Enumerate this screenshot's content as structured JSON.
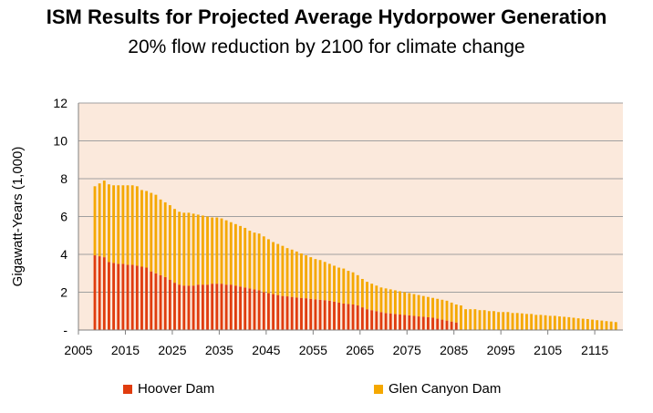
{
  "chart_data": {
    "type": "bar",
    "stacked": true,
    "title": "ISM Results for Projected Average Hydorpower Generation",
    "subtitle": "20% flow reduction by 2100 for climate change",
    "xlabel": "",
    "ylabel": "Gigawatt-Years (1,000)",
    "ylim": [
      0,
      12
    ],
    "yticks": [
      0,
      2,
      4,
      6,
      8,
      10,
      12
    ],
    "ytick_labels": [
      "-",
      "2",
      "4",
      "6",
      "8",
      "10",
      "12"
    ],
    "xticks": [
      2005,
      2015,
      2025,
      2035,
      2045,
      2055,
      2065,
      2075,
      2085,
      2095,
      2105,
      2115
    ],
    "xtick_labels": [
      "2005",
      "2015",
      "2025",
      "2035",
      "2045",
      "2055",
      "2065",
      "2075",
      "2085",
      "2095",
      "2105",
      "2115"
    ],
    "xrange": [
      2005,
      2121
    ],
    "grid": true,
    "legend_position": "bottom",
    "plot_background": "#fbe9dc",
    "categories": [
      2008,
      2009,
      2010,
      2011,
      2012,
      2013,
      2014,
      2015,
      2016,
      2017,
      2018,
      2019,
      2020,
      2021,
      2022,
      2023,
      2024,
      2025,
      2026,
      2027,
      2028,
      2029,
      2030,
      2031,
      2032,
      2033,
      2034,
      2035,
      2036,
      2037,
      2038,
      2039,
      2040,
      2041,
      2042,
      2043,
      2044,
      2045,
      2046,
      2047,
      2048,
      2049,
      2050,
      2051,
      2052,
      2053,
      2054,
      2055,
      2056,
      2057,
      2058,
      2059,
      2060,
      2061,
      2062,
      2063,
      2064,
      2065,
      2066,
      2067,
      2068,
      2069,
      2070,
      2071,
      2072,
      2073,
      2074,
      2075,
      2076,
      2077,
      2078,
      2079,
      2080,
      2081,
      2082,
      2083,
      2084,
      2085,
      2086,
      2087,
      2088,
      2089,
      2090,
      2091,
      2092,
      2093,
      2094,
      2095,
      2096,
      2097,
      2098,
      2099,
      2100,
      2101,
      2102,
      2103,
      2104,
      2105,
      2106,
      2107,
      2108,
      2109,
      2110,
      2111,
      2112,
      2113,
      2114,
      2115,
      2116,
      2117,
      2118,
      2119
    ],
    "series": [
      {
        "name": "Hoover Dam",
        "color": "#e03c0e",
        "values": [
          3.95,
          3.9,
          3.85,
          3.6,
          3.55,
          3.5,
          3.5,
          3.45,
          3.45,
          3.4,
          3.35,
          3.3,
          3.1,
          3.0,
          2.9,
          2.8,
          2.65,
          2.5,
          2.4,
          2.35,
          2.35,
          2.35,
          2.4,
          2.4,
          2.4,
          2.45,
          2.45,
          2.45,
          2.4,
          2.4,
          2.35,
          2.3,
          2.25,
          2.2,
          2.15,
          2.1,
          2.0,
          1.95,
          1.9,
          1.85,
          1.8,
          1.78,
          1.75,
          1.72,
          1.7,
          1.68,
          1.65,
          1.62,
          1.6,
          1.58,
          1.55,
          1.5,
          1.45,
          1.4,
          1.38,
          1.35,
          1.3,
          1.2,
          1.1,
          1.05,
          1.0,
          0.95,
          0.9,
          0.88,
          0.85,
          0.82,
          0.8,
          0.78,
          0.75,
          0.72,
          0.7,
          0.68,
          0.65,
          0.6,
          0.55,
          0.5,
          0.45,
          0.4,
          0,
          0,
          0,
          0,
          0,
          0,
          0,
          0,
          0,
          0,
          0,
          0,
          0,
          0,
          0,
          0,
          0,
          0,
          0,
          0,
          0,
          0,
          0,
          0,
          0,
          0,
          0,
          0,
          0,
          0,
          0,
          0,
          0,
          0
        ]
      },
      {
        "name": "Glen Canyon Dam",
        "color": "#f5a800",
        "values": [
          3.65,
          3.85,
          4.05,
          4.1,
          4.1,
          4.15,
          4.15,
          4.2,
          4.2,
          4.2,
          4.05,
          4.05,
          4.15,
          4.15,
          4.0,
          3.95,
          3.95,
          3.9,
          3.85,
          3.85,
          3.85,
          3.8,
          3.7,
          3.65,
          3.6,
          3.5,
          3.5,
          3.45,
          3.4,
          3.3,
          3.25,
          3.2,
          3.15,
          3.05,
          3.0,
          3.0,
          2.95,
          2.85,
          2.75,
          2.7,
          2.65,
          2.55,
          2.5,
          2.43,
          2.35,
          2.27,
          2.2,
          2.13,
          2.1,
          2.02,
          1.95,
          1.9,
          1.85,
          1.85,
          1.75,
          1.7,
          1.6,
          1.5,
          1.45,
          1.4,
          1.35,
          1.3,
          1.3,
          1.27,
          1.25,
          1.23,
          1.2,
          1.17,
          1.15,
          1.13,
          1.1,
          1.07,
          1.05,
          1.05,
          1.05,
          1.05,
          1.0,
          0.95,
          1.3,
          1.1,
          1.1,
          1.1,
          1.05,
          1.05,
          1.0,
          1.0,
          0.95,
          0.95,
          0.95,
          0.9,
          0.9,
          0.88,
          0.85,
          0.85,
          0.8,
          0.8,
          0.78,
          0.75,
          0.75,
          0.72,
          0.7,
          0.68,
          0.65,
          0.62,
          0.6,
          0.58,
          0.55,
          0.52,
          0.5,
          0.47,
          0.45,
          0.42
        ]
      }
    ]
  }
}
